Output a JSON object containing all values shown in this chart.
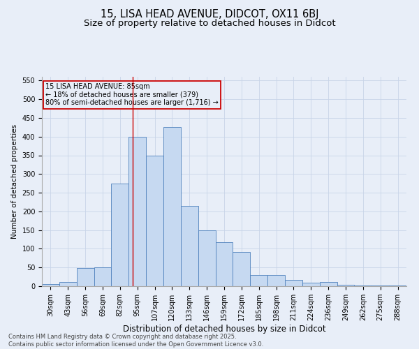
{
  "title1": "15, LISA HEAD AVENUE, DIDCOT, OX11 6BJ",
  "title2": "Size of property relative to detached houses in Didcot",
  "xlabel": "Distribution of detached houses by size in Didcot",
  "ylabel": "Number of detached properties",
  "categories": [
    "30sqm",
    "43sqm",
    "56sqm",
    "69sqm",
    "82sqm",
    "95sqm",
    "107sqm",
    "120sqm",
    "133sqm",
    "146sqm",
    "159sqm",
    "172sqm",
    "185sqm",
    "198sqm",
    "211sqm",
    "224sqm",
    "236sqm",
    "249sqm",
    "262sqm",
    "275sqm",
    "288sqm"
  ],
  "values": [
    5,
    12,
    48,
    50,
    275,
    400,
    350,
    425,
    215,
    150,
    118,
    92,
    30,
    30,
    16,
    10,
    12,
    3,
    1,
    1,
    1
  ],
  "bar_color": "#c6d9f1",
  "bar_edge_color": "#4f81bd",
  "grid_color": "#c8d4e8",
  "bg_color": "#e8eef8",
  "annotation_text": "15 LISA HEAD AVENUE: 85sqm\n← 18% of detached houses are smaller (379)\n80% of semi-detached houses are larger (1,716) →",
  "annotation_box_color": "#cc0000",
  "vline_x": 4.72,
  "ylim": [
    0,
    560
  ],
  "yticks": [
    0,
    50,
    100,
    150,
    200,
    250,
    300,
    350,
    400,
    450,
    500,
    550
  ],
  "footer_text": "Contains HM Land Registry data © Crown copyright and database right 2025.\nContains public sector information licensed under the Open Government Licence v3.0.",
  "title1_fontsize": 10.5,
  "title2_fontsize": 9.5,
  "xlabel_fontsize": 8.5,
  "ylabel_fontsize": 7.5,
  "tick_fontsize": 7,
  "footer_fontsize": 6,
  "annot_fontsize": 7
}
